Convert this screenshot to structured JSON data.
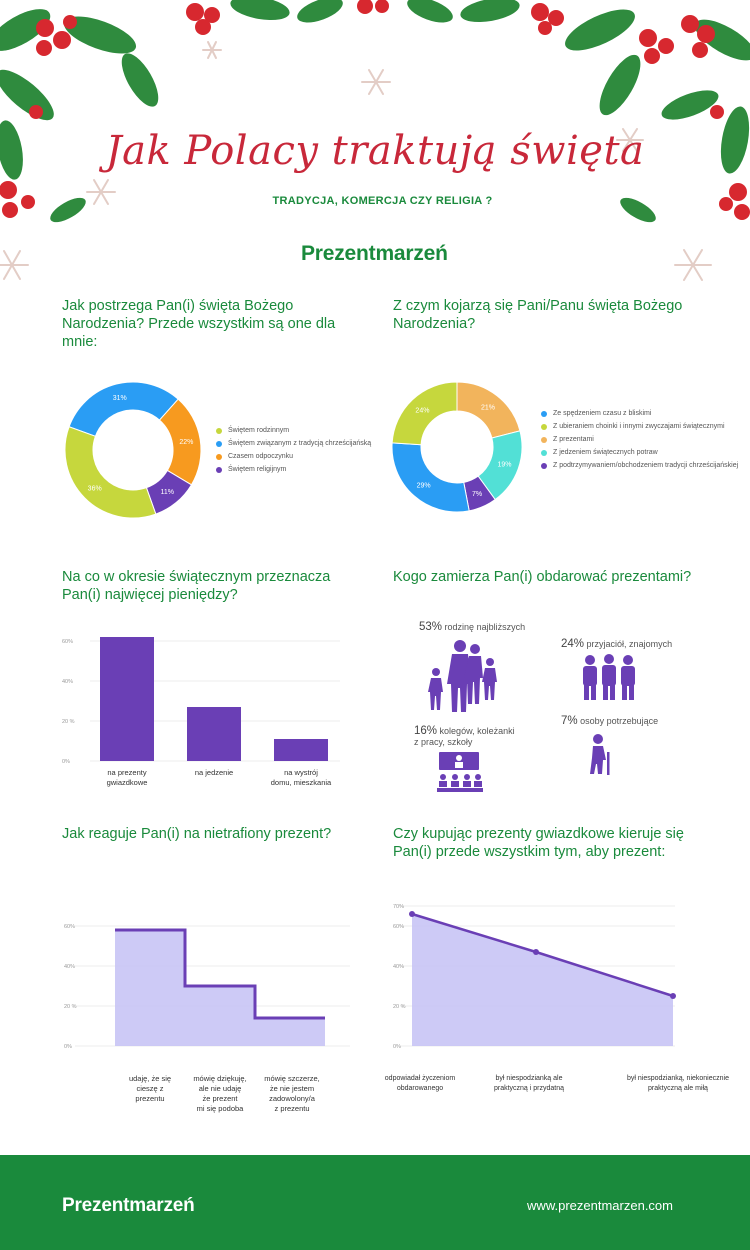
{
  "header": {
    "title": "Jak Polacy traktują święta",
    "subtitle": "TRADYCJA, KOMERCJA CZY RELIGIA ?",
    "logo": "Prezentmarzeń"
  },
  "colors": {
    "brand_green": "#1a8a3c",
    "title_red": "#c8283a",
    "purple": "#6a3fb5",
    "lavender": "#c8c4f5",
    "lime": "#c6d73d",
    "blue": "#2a9df4",
    "orange": "#f79a1f",
    "teal": "#52e0d6",
    "tan": "#f2b45c"
  },
  "q1": {
    "question": "Jak postrzega Pan(i) święta Bożego Narodzenia? Przede wszystkim są one dla mnie:",
    "chart_data": {
      "type": "pie",
      "labels": [
        "Świętem rodzinnym",
        "Świętem związanym z tradycją chrześcijańską",
        "Czasem odpoczynku",
        "Świętem religijnym"
      ],
      "values": [
        36,
        31,
        22,
        11
      ],
      "value_labels": [
        "36%",
        "31%",
        "22%",
        "11%"
      ],
      "colors": [
        "#c6d73d",
        "#2a9df4",
        "#f79a1f",
        "#6a3fb5"
      ],
      "donut": true,
      "legend": "right"
    }
  },
  "q2": {
    "question": "Z czym kojarzą się Pani/Panu święta Bożego Narodzenia?",
    "chart_data": {
      "type": "pie",
      "labels": [
        "Ze spędzeniem czasu z bliskimi",
        "Z ubieraniem choinki i innymi zwyczajami świątecznymi",
        "Z prezentami",
        "Z jedzeniem świątecznych potraw",
        "Z podtrzymywaniem/obchodzeniem tradycji chrześcijańskiej"
      ],
      "values": [
        29,
        24,
        21,
        19,
        7
      ],
      "value_labels": [
        "29%",
        "24%",
        "21%",
        "19%",
        "7%"
      ],
      "colors": [
        "#2a9df4",
        "#c6d73d",
        "#f2b45c",
        "#52e0d6",
        "#6a3fb5"
      ],
      "donut": true,
      "legend": "right"
    }
  },
  "q3": {
    "question": "Na co w okresie świątecznym przeznacza Pan(i) najwięcej pieniędzy?",
    "chart_data": {
      "type": "bar",
      "categories": [
        "na prezenty gwiazdkowe",
        "na jedzenie",
        "na wystrój domu, mieszkania"
      ],
      "category_lines": [
        [
          "na prezenty",
          "gwiazdkowe"
        ],
        [
          "na jedzenie"
        ],
        [
          "na wystrój",
          "domu, mieszkania"
        ]
      ],
      "values": [
        62,
        27,
        11
      ],
      "yticks": [
        "0%",
        "20 %",
        "40%",
        "60%"
      ],
      "ylim": [
        0,
        65
      ],
      "grid": true
    }
  },
  "q4": {
    "question": "Kogo zamierza Pan(i) obdarować prezentami?",
    "items": [
      {
        "pct": "53%",
        "text": "rodzinę najbliższych",
        "icon": "family-icon"
      },
      {
        "pct": "24%",
        "text": "przyjaciół, znajomych",
        "icon": "friends-group-icon"
      },
      {
        "pct": "16%",
        "text": "kolegów, koleżanki",
        "text2": "z pracy, szkoły",
        "icon": "classroom-icon"
      },
      {
        "pct": "7%",
        "text": "osoby potrzebujące",
        "icon": "elderly-person-icon"
      }
    ]
  },
  "q5": {
    "question": "Jak reaguje Pan(i) na nietrafiony prezent?",
    "chart_data": {
      "type": "area",
      "step": true,
      "categories": [
        "udaję, że się cieszę z prezentu",
        "mówię dziękuję, ale nie udaję że prezent mi się podoba",
        "mówię szczerze, że nie jestem zadowolony/a z prezentu"
      ],
      "category_lines": [
        [
          "udaję, że się",
          "cieszę z",
          "prezentu"
        ],
        [
          "mówię dziękuję,",
          "ale nie udaję",
          "że prezent",
          "mi się podoba"
        ],
        [
          "mówię szczerze,",
          "że nie jestem",
          "zadowolony/a",
          "z prezentu"
        ]
      ],
      "values": [
        58,
        30,
        14
      ],
      "yticks": [
        "0%",
        "20 %",
        "40%",
        "60%"
      ],
      "ylim": [
        0,
        65
      ],
      "grid": true
    }
  },
  "q6": {
    "question": "Czy kupując prezenty gwiazdkowe kieruje się Pan(i) przede wszystkim tym, aby prezent:",
    "chart_data": {
      "type": "area",
      "categories": [
        "odpowiadał życzeniom obdarowanego",
        "był niespodzianką ale praktyczną i przydatną",
        "był niespodzianką, niekoniecznie praktyczną ale miłą"
      ],
      "category_lines": [
        [
          "odpowiadał życzeniom",
          "obdarowanego"
        ],
        [
          "był niespodzianką ale",
          "praktyczną i przydatną"
        ],
        [
          "był niespodzianką, niekoniecznie",
          "praktyczną ale miłą"
        ]
      ],
      "values": [
        66,
        47,
        25
      ],
      "yticks": [
        "0%",
        "20 %",
        "40%",
        "60%",
        "70%"
      ],
      "ylim": [
        0,
        80
      ],
      "grid": true
    }
  },
  "footer": {
    "logo": "Prezentmarzeń",
    "url": "www.prezentmarzen.com"
  }
}
